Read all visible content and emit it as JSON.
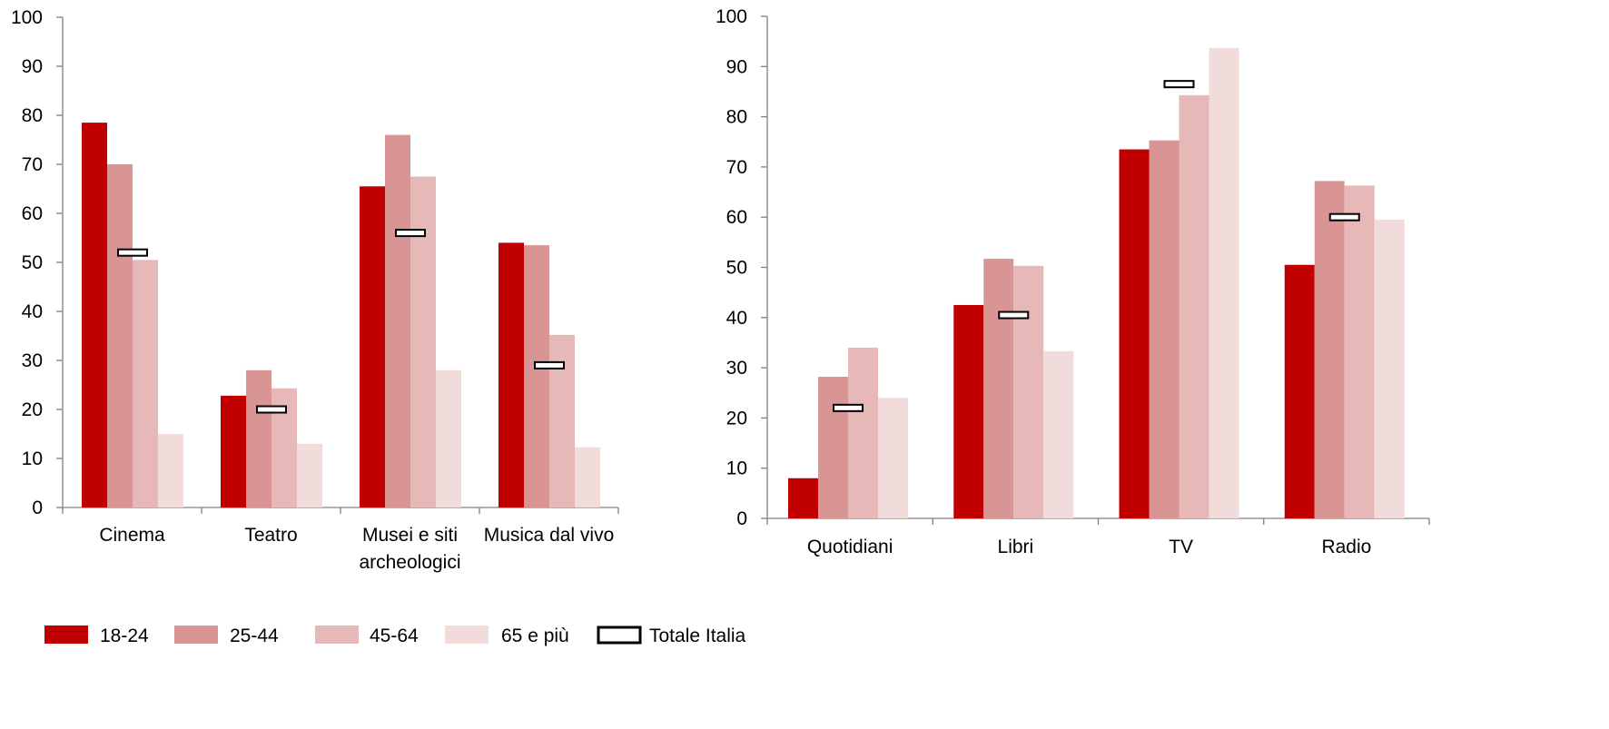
{
  "colors": {
    "18-24": "#c00000",
    "25-44": "#d99594",
    "45-64": "#e6b9b8",
    "65 e più": "#f2dcdb",
    "axis": "#808080",
    "total_marker_fill": "#ffffff",
    "total_marker_stroke": "#000000"
  },
  "chart_data": [
    {
      "type": "bar",
      "categories": [
        [
          "Cinema"
        ],
        [
          "Teatro"
        ],
        [
          "Musei e siti",
          "archeologici"
        ],
        [
          "Musica dal vivo"
        ]
      ],
      "series": [
        {
          "name": "18-24",
          "values": [
            78.5,
            22.8,
            65.5,
            54.0
          ]
        },
        {
          "name": "25-44",
          "values": [
            70.0,
            28.0,
            76.0,
            53.5
          ]
        },
        {
          "name": "45-64",
          "values": [
            50.5,
            24.3,
            67.5,
            35.2
          ]
        },
        {
          "name": "65 e più",
          "values": [
            15.0,
            13.0,
            28.0,
            12.3
          ]
        }
      ],
      "markers": {
        "name": "Totale Italia",
        "values": [
          52.0,
          20.0,
          56.0,
          29.0
        ]
      },
      "ylim": [
        0,
        100
      ],
      "yticks": [
        0,
        10,
        20,
        30,
        40,
        50,
        60,
        70,
        80,
        90,
        100
      ],
      "grid": false
    },
    {
      "type": "bar",
      "categories": [
        [
          "Quotidiani"
        ],
        [
          "Libri"
        ],
        [
          "TV"
        ],
        [
          "Radio"
        ]
      ],
      "series": [
        {
          "name": "18-24",
          "values": [
            8.0,
            42.5,
            73.5,
            50.5
          ]
        },
        {
          "name": "25-44",
          "values": [
            28.2,
            51.7,
            75.3,
            67.2
          ]
        },
        {
          "name": "45-64",
          "values": [
            34.0,
            50.3,
            84.3,
            66.3
          ]
        },
        {
          "name": "65 e più",
          "values": [
            24.0,
            33.3,
            93.7,
            59.5
          ]
        }
      ],
      "markers": {
        "name": "Totale Italia",
        "values": [
          22.0,
          40.5,
          86.5,
          60.0
        ]
      },
      "ylim": [
        0,
        100
      ],
      "yticks": [
        0,
        10,
        20,
        30,
        40,
        50,
        60,
        70,
        80,
        90,
        100
      ],
      "grid": false
    }
  ],
  "legend": {
    "placement": "bottom-left",
    "items": [
      {
        "label": "18-24",
        "kind": "box"
      },
      {
        "label": "25-44",
        "kind": "box"
      },
      {
        "label": "45-64",
        "kind": "box"
      },
      {
        "label": "65 e più",
        "kind": "box"
      },
      {
        "label": "Totale Italia",
        "kind": "outline"
      }
    ]
  }
}
